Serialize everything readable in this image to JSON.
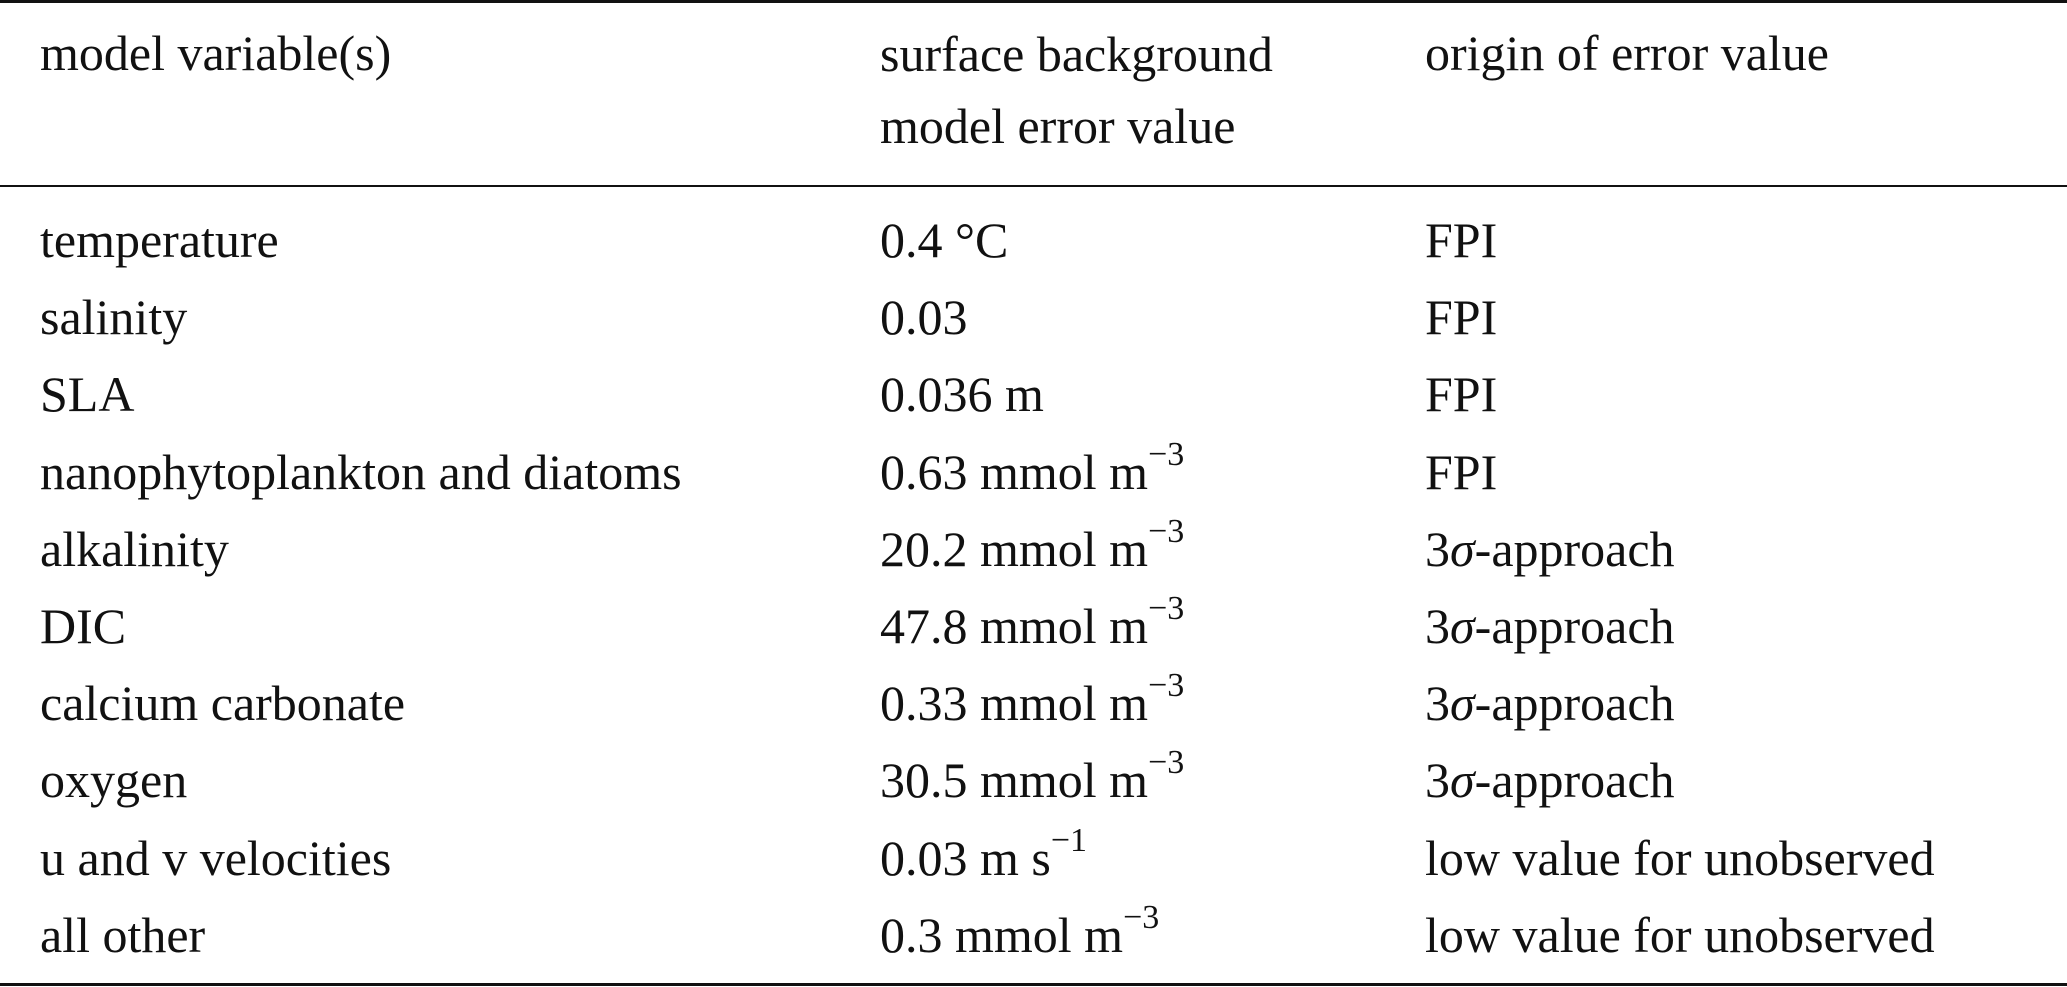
{
  "table": {
    "headers": [
      "model variable(s)",
      "surface background model error value",
      "origin of error value"
    ],
    "header_col2_lines": [
      "surface background",
      "model error value"
    ],
    "rows": [
      {
        "variable": "temperature",
        "value": "0.4 °C",
        "unit_exp": "",
        "origin_prefix": "",
        "origin": "FPI"
      },
      {
        "variable": "salinity",
        "value": "0.03",
        "unit_exp": "",
        "origin_prefix": "",
        "origin": "FPI"
      },
      {
        "variable": "SLA",
        "value": "0.036 m",
        "unit_exp": "",
        "origin_prefix": "",
        "origin": "FPI"
      },
      {
        "variable": "nanophytoplankton and diatoms",
        "value": "0.63 mmol m",
        "unit_exp": "−3",
        "origin_prefix": "",
        "origin": "FPI"
      },
      {
        "variable": "alkalinity",
        "value": "20.2 mmol m",
        "unit_exp": "−3",
        "origin_prefix": "3",
        "origin_sigma": "σ",
        "origin": "-approach"
      },
      {
        "variable": "DIC",
        "value": "47.8 mmol m",
        "unit_exp": "−3",
        "origin_prefix": "3",
        "origin_sigma": "σ",
        "origin": "-approach"
      },
      {
        "variable": "calcium carbonate",
        "value": "0.33 mmol m",
        "unit_exp": "−3",
        "origin_prefix": "3",
        "origin_sigma": "σ",
        "origin": "-approach"
      },
      {
        "variable": "oxygen",
        "value": "30.5 mmol m",
        "unit_exp": "−3",
        "origin_prefix": "3",
        "origin_sigma": "σ",
        "origin": "-approach"
      },
      {
        "variable": "u and v velocities",
        "value": "0.03 m s",
        "unit_exp": "−1",
        "origin_prefix": "",
        "origin": "low value for unobserved"
      },
      {
        "variable": "all other",
        "value": "0.3 mmol m",
        "unit_exp": "−3",
        "origin_prefix": "",
        "origin": "low value for unobserved"
      }
    ]
  }
}
